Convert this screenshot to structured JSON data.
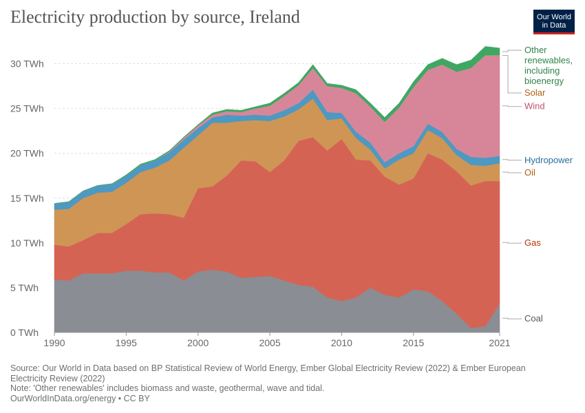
{
  "header": {
    "title": "Electricity production by source, Ireland"
  },
  "logo": {
    "line1": "Our World",
    "line2": "in Data",
    "bg_color": "#002147",
    "accent_color": "#ce261e"
  },
  "footer": {
    "source": "Source: Our World in Data based on BP Statistical Review of World Energy, Ember Global Electricity Review (2022) & Ember European Electricity Review (2022)",
    "note": "Note: 'Other renewables' includes biomass and waste, geothermal, wave and tidal.",
    "url": "OurWorldInData.org/energy • CC BY"
  },
  "chart_data": {
    "type": "area",
    "stacked": true,
    "title": "Electricity production by source, Ireland",
    "xlabel": "",
    "ylabel": "",
    "xlim": [
      1990,
      2021
    ],
    "ylim": [
      0,
      32.5
    ],
    "grid": true,
    "legend": "right",
    "x_ticks": [
      1990,
      1995,
      2000,
      2005,
      2010,
      2015,
      2021
    ],
    "x_tick_labels": [
      "1990",
      "1995",
      "2000",
      "2005",
      "2010",
      "2015",
      "2021"
    ],
    "y_ticks": [
      0,
      5,
      10,
      15,
      20,
      25,
      30
    ],
    "y_tick_labels": [
      "0 TWh",
      "5 TWh",
      "10 TWh",
      "15 TWh",
      "20 TWh",
      "25 TWh",
      "30 TWh"
    ],
    "x": [
      1990,
      1991,
      1992,
      1993,
      1994,
      1995,
      1996,
      1997,
      1998,
      1999,
      2000,
      2001,
      2002,
      2003,
      2004,
      2005,
      2006,
      2007,
      2008,
      2009,
      2010,
      2011,
      2012,
      2013,
      2014,
      2015,
      2016,
      2017,
      2018,
      2019,
      2020,
      2021
    ],
    "series": [
      {
        "name": "Coal",
        "color": "#8a8d93",
        "values": [
          5.9,
          5.8,
          6.6,
          6.6,
          6.6,
          6.9,
          6.9,
          6.7,
          6.7,
          5.8,
          6.8,
          7.0,
          6.8,
          6.1,
          6.2,
          6.3,
          5.8,
          5.3,
          5.1,
          3.9,
          3.5,
          3.9,
          5.0,
          4.2,
          3.9,
          4.8,
          4.6,
          3.5,
          2.1,
          0.5,
          0.7,
          3.2
        ]
      },
      {
        "name": "Gas",
        "color": "#d56354",
        "values": [
          3.9,
          3.8,
          3.7,
          4.5,
          4.5,
          5.2,
          6.3,
          6.6,
          6.5,
          7.0,
          9.3,
          9.3,
          10.7,
          13.1,
          12.9,
          11.6,
          13.4,
          16.1,
          16.7,
          16.4,
          18.1,
          15.4,
          14.2,
          13.2,
          12.6,
          12.4,
          15.4,
          15.8,
          15.9,
          15.9,
          16.2,
          13.7
        ]
      },
      {
        "name": "Oil",
        "color": "#cf9555",
        "values": [
          3.9,
          4.2,
          4.7,
          4.5,
          4.6,
          4.6,
          4.7,
          5.1,
          6.0,
          7.8,
          5.9,
          7.1,
          5.9,
          4.4,
          4.6,
          5.7,
          4.9,
          3.5,
          4.3,
          3.4,
          2.3,
          2.4,
          1.2,
          0.9,
          2.8,
          2.8,
          2.6,
          2.4,
          1.8,
          2.3,
          1.7,
          2.0
        ]
      },
      {
        "name": "Hydropower",
        "color": "#4d99c2",
        "values": [
          0.7,
          0.8,
          0.8,
          0.8,
          0.9,
          0.8,
          0.8,
          0.8,
          0.9,
          0.9,
          0.8,
          0.6,
          0.9,
          0.6,
          0.6,
          0.6,
          0.7,
          0.7,
          1.0,
          0.9,
          0.6,
          0.7,
          0.8,
          0.7,
          0.7,
          0.8,
          0.7,
          0.7,
          0.7,
          0.9,
          0.9,
          0.8
        ]
      },
      {
        "name": "Wind",
        "color": "#d7869a",
        "values": [
          0,
          0,
          0,
          0,
          0,
          0,
          0,
          0,
          0.1,
          0.2,
          0.3,
          0.3,
          0.4,
          0.4,
          0.7,
          1.1,
          1.6,
          2.0,
          2.4,
          2.9,
          2.8,
          4.3,
          4.0,
          4.5,
          5.1,
          6.6,
          6.0,
          7.5,
          8.6,
          9.9,
          11.4,
          11.2
        ]
      },
      {
        "name": "Solar",
        "color": "#e0a76a",
        "values": [
          0,
          0,
          0,
          0,
          0,
          0,
          0,
          0,
          0,
          0,
          0,
          0,
          0,
          0,
          0,
          0,
          0,
          0,
          0,
          0,
          0,
          0,
          0,
          0,
          0,
          0,
          0,
          0,
          0,
          0.01,
          0.03,
          0.05
        ]
      },
      {
        "name": "Other renewables, including bioenergy",
        "color": "#3fa764",
        "values": [
          0,
          0,
          0,
          0,
          0,
          0.1,
          0.1,
          0.1,
          0.1,
          0.1,
          0.1,
          0.2,
          0.2,
          0.2,
          0.2,
          0.3,
          0.3,
          0.3,
          0.4,
          0.3,
          0.3,
          0.4,
          0.4,
          0.5,
          0.5,
          0.6,
          0.6,
          0.7,
          0.8,
          0.9,
          1.0,
          0.8
        ]
      }
    ],
    "series_labels": [
      {
        "series": "Coal",
        "lines": [
          "Coal"
        ],
        "text_color": "#555555"
      },
      {
        "series": "Gas",
        "lines": [
          "Gas"
        ],
        "text_color": "#b13507"
      },
      {
        "series": "Oil",
        "lines": [
          "Oil"
        ],
        "text_color": "#b05f10"
      },
      {
        "series": "Hydropower",
        "lines": [
          "Hydropower"
        ],
        "text_color": "#286e9b"
      },
      {
        "series": "Wind",
        "lines": [
          "Wind"
        ],
        "text_color": "#c0506e"
      },
      {
        "series": "Solar",
        "lines": [
          "Solar"
        ],
        "text_color": "#b05f10"
      },
      {
        "series": "Other renewables, including bioenergy",
        "lines": [
          "Other",
          "renewables,",
          "including",
          "bioenergy"
        ],
        "text_color": "#2f8348"
      }
    ]
  }
}
